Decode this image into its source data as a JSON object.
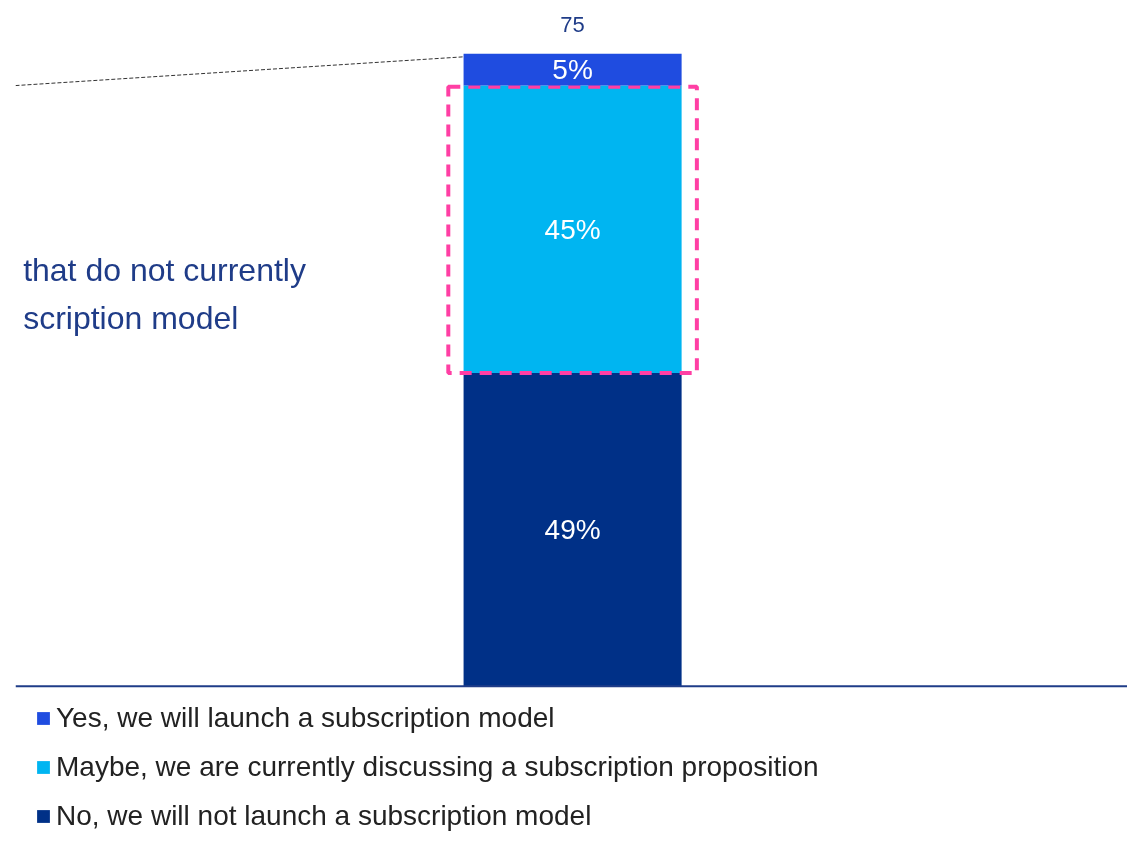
{
  "chart_data": {
    "type": "bar",
    "stacked": true,
    "categories": [
      null
    ],
    "series": [
      {
        "name": "No, we will not launch a subscription model",
        "color": "#003087",
        "values": [
          49
        ],
        "value_labels": [
          "49%"
        ]
      },
      {
        "name": "Maybe, we are currently discussing a subscription proposition",
        "color": "#00b5f1",
        "values": [
          45
        ],
        "value_labels": [
          "45%"
        ]
      },
      {
        "name": "Yes, we will launch a subscription model",
        "color": "#1f4ce0",
        "values": [
          5
        ],
        "value_labels": [
          "5%"
        ]
      }
    ],
    "legend": "bottom",
    "annotations": [
      {
        "text": "75",
        "y": 99
      },
      "that do not currently scription model"
    ]
  }
}
